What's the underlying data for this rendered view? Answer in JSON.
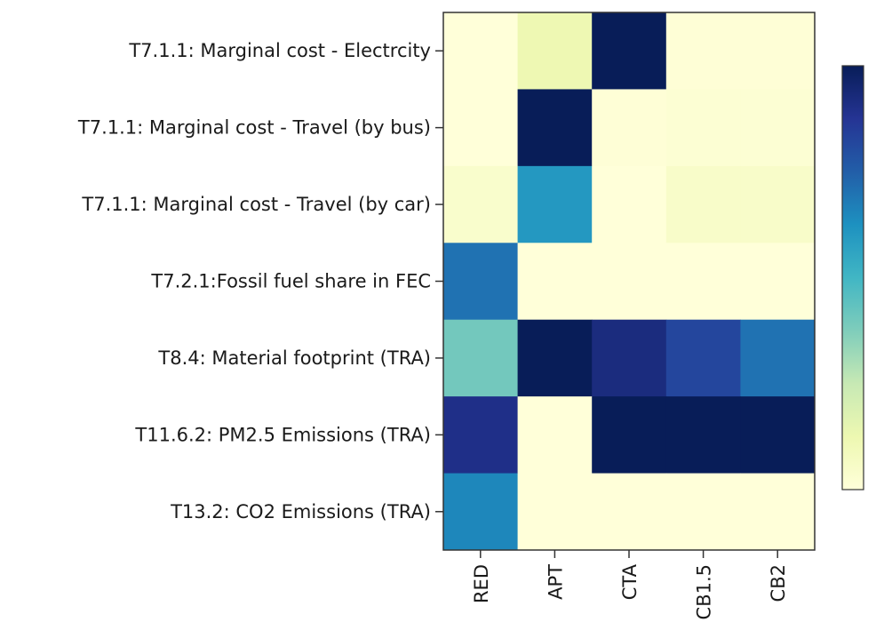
{
  "chart_data": {
    "type": "heatmap",
    "title": "",
    "xlabel": "",
    "ylabel": "",
    "colormap": "YlGnBu",
    "value_range": [
      0,
      1
    ],
    "colorbar": {
      "orientation": "vertical",
      "placement": "right",
      "tick_labels": []
    },
    "x_categories": [
      "RED",
      "APT",
      "CTA",
      "CB1.5",
      "CB2"
    ],
    "y_categories": [
      "T7.1.1: Marginal cost - Electrcity",
      "T7.1.1: Marginal cost - Travel (by bus)",
      "T7.1.1: Marginal cost - Travel (by car)",
      "T7.2.1:Fossil fuel share in FEC",
      "T8.4: Material footprint (TRA)",
      "T11.6.2: PM2.5 Emissions (TRA)",
      "T13.2: CO2 Emissions (TRA)"
    ],
    "values": [
      [
        0.0,
        0.12,
        1.0,
        0.01,
        0.01
      ],
      [
        0.0,
        1.0,
        0.01,
        0.02,
        0.02
      ],
      [
        0.04,
        0.6,
        0.0,
        0.05,
        0.05
      ],
      [
        0.7,
        0.0,
        0.0,
        0.0,
        0.0
      ],
      [
        0.4,
        1.0,
        0.92,
        0.82,
        0.7
      ],
      [
        0.9,
        0.0,
        1.0,
        1.0,
        1.0
      ],
      [
        0.65,
        0.0,
        0.0,
        0.0,
        0.0
      ]
    ]
  }
}
